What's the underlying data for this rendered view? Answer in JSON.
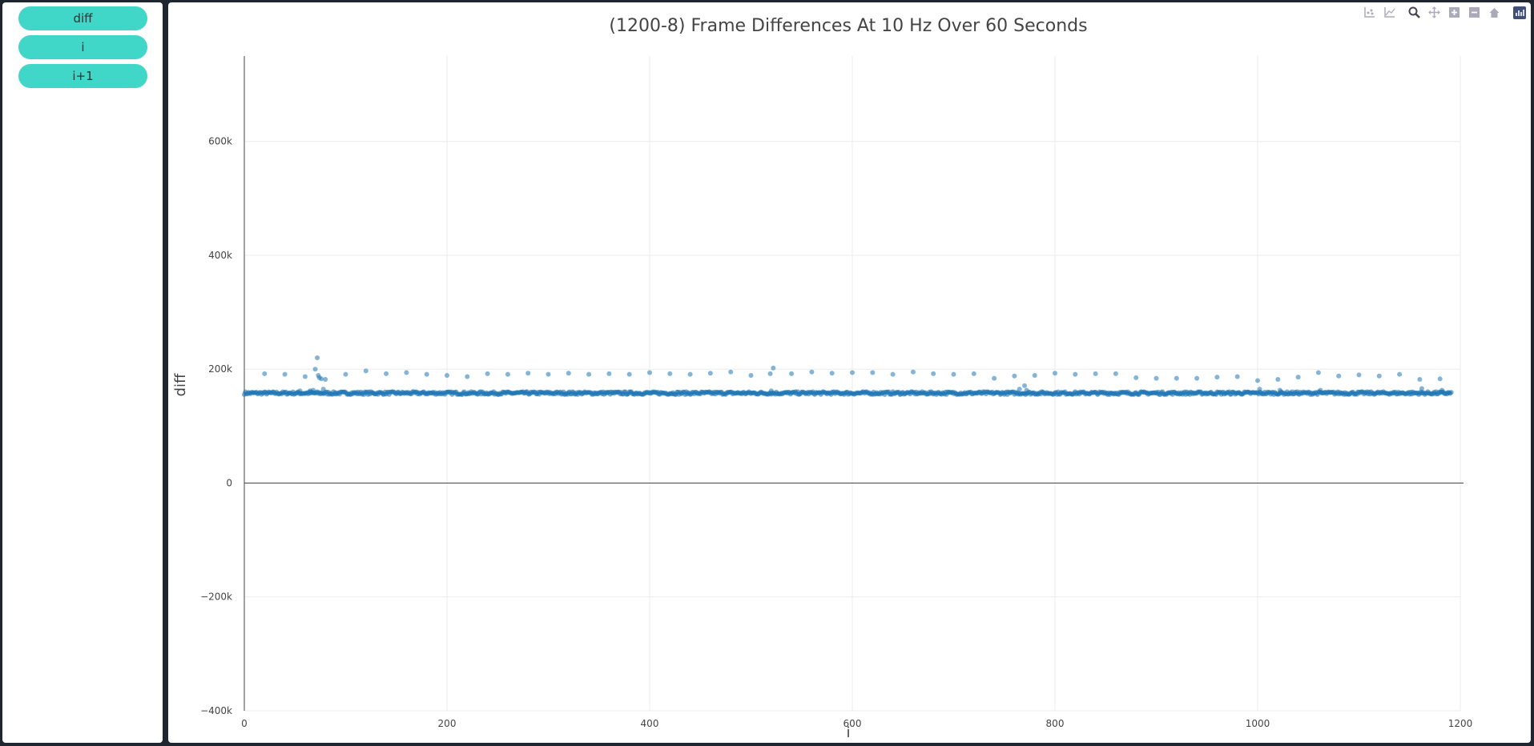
{
  "sidebar": {
    "buttons": [
      {
        "label": "diff"
      },
      {
        "label": "i"
      },
      {
        "label": "i+1"
      }
    ]
  },
  "modebar": {
    "icons": [
      "compare-data-icon",
      "spike-lines-icon",
      "zoom-icon",
      "pan-icon",
      "zoom-in-icon",
      "zoom-out-icon",
      "reset-axes-icon",
      "plotly-logo-icon"
    ]
  },
  "colors": {
    "marker": "#1f77b4",
    "accent": "#40d6c8",
    "background": "#1f2630"
  },
  "chart_data": {
    "type": "scatter",
    "title": "(1200-8) Frame Differences At 10 Hz Over 60 Seconds",
    "xlabel": "i",
    "ylabel": "diff",
    "xlim": [
      0,
      1200
    ],
    "ylim": [
      -400000,
      750000
    ],
    "x_ticks": [
      0,
      200,
      400,
      600,
      800,
      1000,
      1200
    ],
    "x_tick_labels": [
      "0",
      "200",
      "400",
      "600",
      "800",
      "1000",
      "1200"
    ],
    "y_ticks": [
      -400000,
      -200000,
      0,
      200000,
      400000,
      600000
    ],
    "y_tick_labels": [
      "−400k",
      "−200k",
      "0",
      "200k",
      "400k",
      "600k"
    ],
    "grid": true,
    "series": [
      {
        "n_points": 1192,
        "x_start": 0,
        "x_end": 1191,
        "baseline": 158000,
        "baseline_jitter": 2500,
        "outliers": [
          [
            20,
            192000
          ],
          [
            40,
            191000
          ],
          [
            55,
            162000
          ],
          [
            60,
            187000
          ],
          [
            65,
            162000
          ],
          [
            68,
            163000
          ],
          [
            70,
            200000
          ],
          [
            72,
            220000
          ],
          [
            73,
            189000
          ],
          [
            74,
            185000
          ],
          [
            76,
            183000
          ],
          [
            78,
            165000
          ],
          [
            80,
            182000
          ],
          [
            100,
            191000
          ],
          [
            120,
            197000
          ],
          [
            140,
            192000
          ],
          [
            160,
            194000
          ],
          [
            180,
            191000
          ],
          [
            200,
            189000
          ],
          [
            220,
            187000
          ],
          [
            240,
            192000
          ],
          [
            260,
            191000
          ],
          [
            280,
            193000
          ],
          [
            300,
            191000
          ],
          [
            320,
            193000
          ],
          [
            340,
            191000
          ],
          [
            360,
            192000
          ],
          [
            380,
            191000
          ],
          [
            400,
            194000
          ],
          [
            420,
            192000
          ],
          [
            440,
            191000
          ],
          [
            460,
            193000
          ],
          [
            480,
            195000
          ],
          [
            500,
            189000
          ],
          [
            519,
            192000
          ],
          [
            520,
            162000
          ],
          [
            522,
            202000
          ],
          [
            540,
            192000
          ],
          [
            560,
            195000
          ],
          [
            580,
            193000
          ],
          [
            600,
            194000
          ],
          [
            620,
            194000
          ],
          [
            640,
            191000
          ],
          [
            660,
            195000
          ],
          [
            680,
            192000
          ],
          [
            700,
            191000
          ],
          [
            720,
            192000
          ],
          [
            740,
            184000
          ],
          [
            760,
            188000
          ],
          [
            765,
            165000
          ],
          [
            770,
            171000
          ],
          [
            772,
            163000
          ],
          [
            780,
            189000
          ],
          [
            800,
            193000
          ],
          [
            820,
            191000
          ],
          [
            840,
            192000
          ],
          [
            860,
            192000
          ],
          [
            880,
            185000
          ],
          [
            900,
            184000
          ],
          [
            920,
            184000
          ],
          [
            940,
            184000
          ],
          [
            960,
            186000
          ],
          [
            980,
            187000
          ],
          [
            1000,
            180000
          ],
          [
            1002,
            165000
          ],
          [
            1020,
            182000
          ],
          [
            1022,
            163000
          ],
          [
            1040,
            186000
          ],
          [
            1060,
            194000
          ],
          [
            1062,
            163000
          ],
          [
            1080,
            188000
          ],
          [
            1100,
            190000
          ],
          [
            1120,
            188000
          ],
          [
            1140,
            191000
          ],
          [
            1160,
            182000
          ],
          [
            1162,
            166000
          ],
          [
            1180,
            183000
          ],
          [
            1182,
            163000
          ]
        ]
      }
    ]
  }
}
